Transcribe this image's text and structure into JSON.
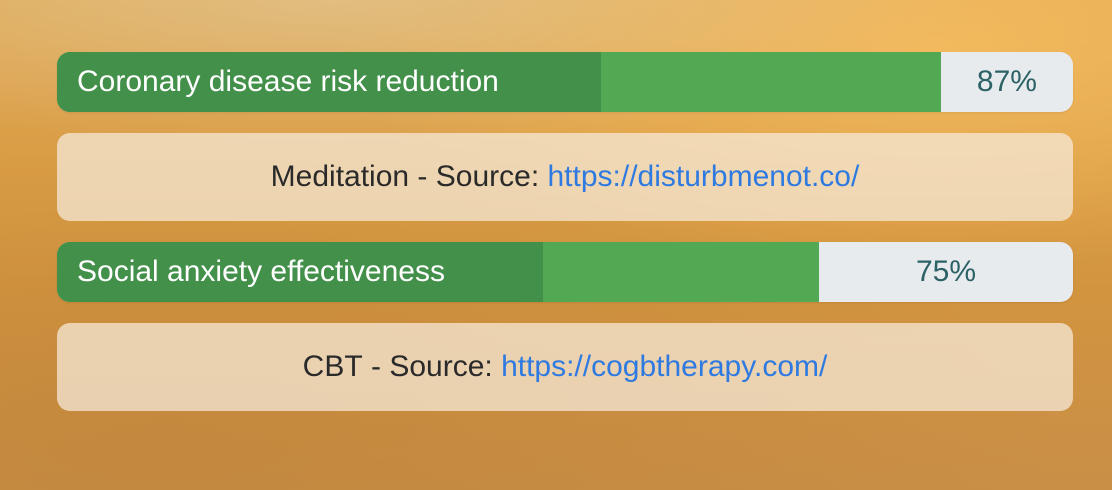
{
  "items": [
    {
      "stat_label": "Coronary disease risk reduction",
      "value_text": "87%",
      "value": 87,
      "technique": "Meditation",
      "source_prefix": "Source:",
      "url": "https://disturbmenot.co/"
    },
    {
      "stat_label": "Social anxiety effectiveness",
      "value_text": "75%",
      "value": 75,
      "technique": "CBT",
      "source_prefix": "Source:",
      "url": "https://cogbtherapy.com/"
    }
  ],
  "colors": {
    "bar_fill": "#52a853",
    "bar_label_segment": "#43904a",
    "bar_track": "#e8ebee",
    "value_text": "#2c6266",
    "link": "#2e7ae0"
  }
}
